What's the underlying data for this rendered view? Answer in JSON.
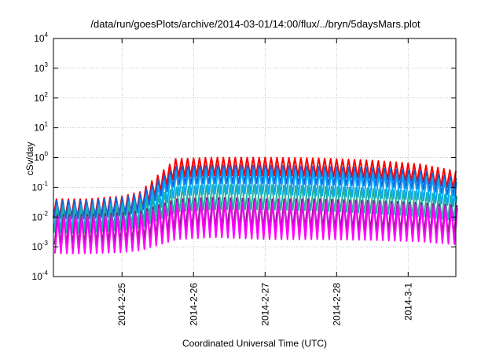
{
  "chart_data": {
    "type": "line",
    "title": "/data/run/goesPlots/archive/2014-03-01/14:00/flux/../bryn/5daysMars.plot",
    "xlabel": "Coordinated Universal Time (UTC)",
    "ylabel": "cSv/day",
    "yscale": "log",
    "ylim": [
      0.0001,
      10000
    ],
    "xlim": [
      "2014-02-24T01:00",
      "2014-03-01T16:00"
    ],
    "grid": true,
    "y_ticks": [
      {
        "base": "10",
        "exp": "-4"
      },
      {
        "base": "10",
        "exp": "-3"
      },
      {
        "base": "10",
        "exp": "-2"
      },
      {
        "base": "10",
        "exp": "-1"
      },
      {
        "base": "10",
        "exp": "0"
      },
      {
        "base": "10",
        "exp": "1"
      },
      {
        "base": "10",
        "exp": "2"
      },
      {
        "base": "10",
        "exp": "3"
      },
      {
        "base": "10",
        "exp": "4"
      }
    ],
    "x_ticks": [
      {
        "label": "2014-2-25",
        "date": "2014-02-25T00:00"
      },
      {
        "label": "2014-2-26",
        "date": "2014-02-26T00:00"
      },
      {
        "label": "2014-2-27",
        "date": "2014-02-27T00:00"
      },
      {
        "label": "2014-2-28",
        "date": "2014-02-28T00:00"
      },
      {
        "label": "2014-3-1",
        "date": "2014-03-01T00:00"
      }
    ],
    "oscillation_period_hours": 2,
    "series": [
      {
        "color": "#ff0000",
        "values": [
          0.04,
          0.04,
          0.05,
          0.07,
          0.9,
          1.0,
          1.0,
          0.95,
          0.8,
          0.6,
          0.35
        ],
        "trough_ratio": 0.25
      },
      {
        "color": "#1f5fd0",
        "values": [
          0.035,
          0.035,
          0.045,
          0.06,
          0.5,
          0.55,
          0.55,
          0.5,
          0.45,
          0.35,
          0.2
        ],
        "trough_ratio": 0.25
      },
      {
        "color": "#00a8ff",
        "values": [
          0.025,
          0.025,
          0.03,
          0.04,
          0.35,
          0.4,
          0.4,
          0.35,
          0.3,
          0.25,
          0.15
        ],
        "trough_ratio": 0.15
      },
      {
        "color": "#20b0a0",
        "values": [
          0.02,
          0.02,
          0.025,
          0.03,
          0.1,
          0.12,
          0.12,
          0.11,
          0.09,
          0.07,
          0.05
        ],
        "trough_ratio": 0.15
      },
      {
        "color": "#8b1a8b",
        "values": [
          0.012,
          0.012,
          0.014,
          0.016,
          0.04,
          0.045,
          0.04,
          0.04,
          0.035,
          0.03,
          0.025
        ],
        "trough_ratio": 0.1
      },
      {
        "color": "#ff00ff",
        "values": [
          0.01,
          0.01,
          0.011,
          0.013,
          0.03,
          0.035,
          0.03,
          0.03,
          0.028,
          0.025,
          0.02
        ],
        "trough_ratio": 0.06
      }
    ],
    "series_x": [
      "2014-02-24T01:00",
      "2014-02-24T12:00",
      "2014-02-25T00:00",
      "2014-02-25T06:00",
      "2014-02-25T18:00",
      "2014-02-26T06:00",
      "2014-02-27T00:00",
      "2014-02-27T18:00",
      "2014-02-28T12:00",
      "2014-03-01T04:00",
      "2014-03-01T16:00"
    ]
  }
}
